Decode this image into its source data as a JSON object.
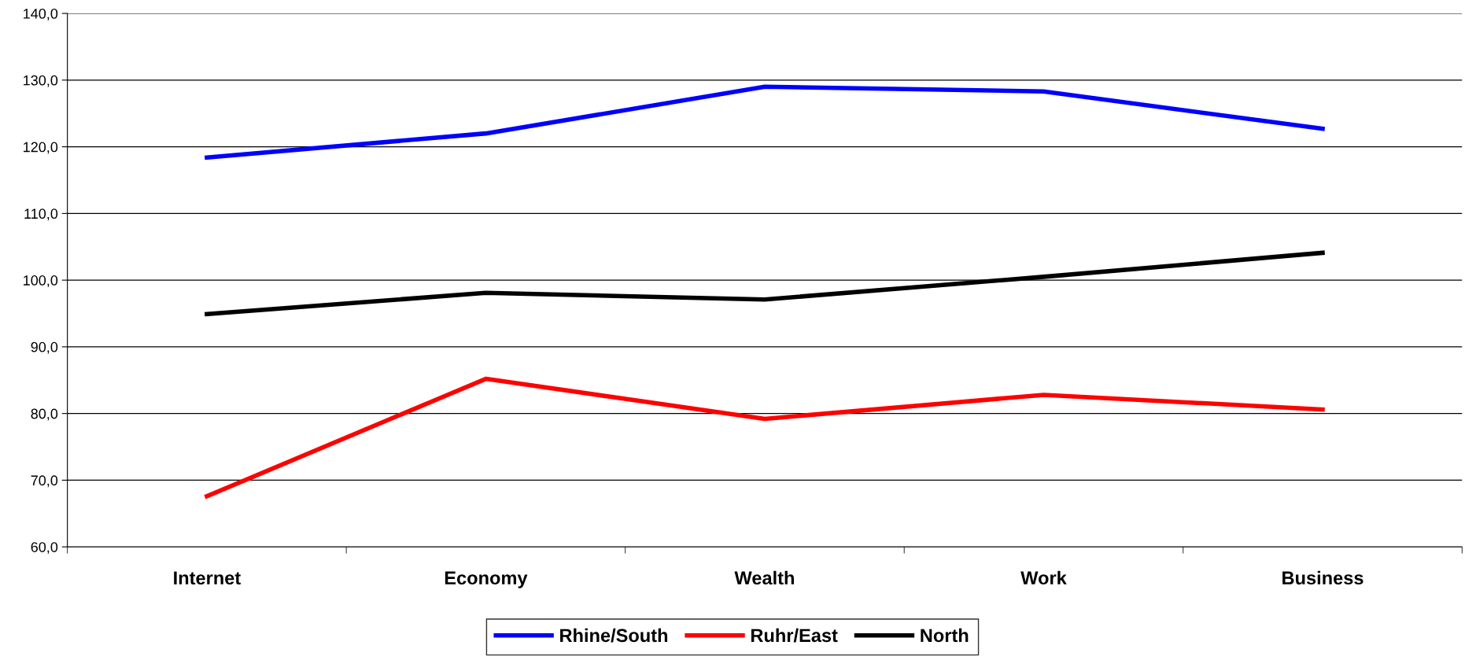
{
  "chart_data": {
    "type": "line",
    "categories": [
      "Internet",
      "Economy",
      "Wealth",
      "Work",
      "Business"
    ],
    "series": [
      {
        "name": "Rhine/South",
        "color": "#0000ff",
        "values": [
          118.4,
          122.0,
          129.0,
          128.3,
          122.7
        ]
      },
      {
        "name": "Ruhr/East",
        "color": "#ff0000",
        "values": [
          67.6,
          85.2,
          79.2,
          82.8,
          80.6
        ]
      },
      {
        "name": "North",
        "color": "#000000",
        "values": [
          94.9,
          98.1,
          97.1,
          100.5,
          104.1
        ]
      }
    ],
    "ylim": [
      60,
      140
    ],
    "yticks": [
      {
        "value": 60,
        "label": "60,0"
      },
      {
        "value": 70,
        "label": "70,0"
      },
      {
        "value": 80,
        "label": "80,0"
      },
      {
        "value": 90,
        "label": "90,0"
      },
      {
        "value": 100,
        "label": "100,0"
      },
      {
        "value": 110,
        "label": "110,0"
      },
      {
        "value": 120,
        "label": "120,0"
      },
      {
        "value": 130,
        "label": "130,0"
      },
      {
        "value": 140,
        "label": "140,0"
      }
    ],
    "grid": "y",
    "legend": "bottom",
    "marker": "none",
    "line_style": "solid"
  }
}
